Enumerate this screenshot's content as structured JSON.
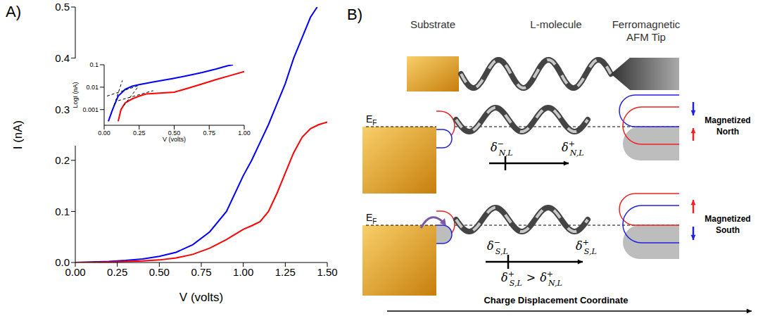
{
  "panel_labels": [
    "A)",
    "B)"
  ],
  "chart_data": [
    {
      "type": "line",
      "x_label": "V (volts)",
      "y_label": "I (nA)",
      "xlim": [
        0,
        1.5
      ],
      "xticks": [
        {
          "value": 0,
          "label": "0.00"
        },
        0.25,
        {
          "value": 0.5,
          "label": "0.50"
        },
        0.75,
        {
          "value": 1,
          "label": "1.00"
        },
        1.25,
        {
          "value": 1.5,
          "label": "1.50"
        }
      ],
      "ylim": [
        0,
        0.5
      ],
      "yticks": [
        {
          "value": 0,
          "label": "0.0"
        },
        0.1,
        0.2,
        0.3,
        0.4,
        0.5
      ],
      "series": [
        {
          "color": "#0000ff",
          "line_style": "solid",
          "x": [
            0,
            0.1,
            0.2,
            0.3,
            0.4,
            0.5,
            0.6,
            0.7,
            0.8,
            0.9,
            1.0,
            1.05,
            1.1,
            1.15,
            1.2,
            1.25,
            1.3,
            1.35,
            1.4,
            1.44
          ],
          "values": [
            0,
            0.001,
            0.002,
            0.004,
            0.007,
            0.012,
            0.02,
            0.035,
            0.06,
            0.1,
            0.17,
            0.2,
            0.235,
            0.27,
            0.31,
            0.35,
            0.4,
            0.44,
            0.48,
            0.5
          ]
        },
        {
          "color": "#ff0000",
          "line_style": "solid",
          "x": [
            0,
            0.1,
            0.2,
            0.3,
            0.4,
            0.5,
            0.6,
            0.7,
            0.8,
            0.9,
            1.0,
            1.05,
            1.1,
            1.15,
            1.2,
            1.25,
            1.3,
            1.35,
            1.4,
            1.45,
            1.5
          ],
          "values": [
            0,
            0.0005,
            0.001,
            0.002,
            0.003,
            0.005,
            0.009,
            0.016,
            0.028,
            0.045,
            0.065,
            0.072,
            0.08,
            0.1,
            0.135,
            0.175,
            0.215,
            0.245,
            0.262,
            0.27,
            0.275
          ]
        }
      ]
    },
    {
      "type": "line",
      "log": "y",
      "x_label": "V (volts)",
      "y_label": "LogI (nA)",
      "xlim": [
        0,
        1.0
      ],
      "xticks": [
        {
          "value": 0,
          "label": "0.00"
        },
        0.25,
        {
          "value": 0.5,
          "label": "0.50"
        },
        0.75,
        {
          "value": 1,
          "label": "1.00"
        }
      ],
      "ylim": [
        0.0002,
        0.1
      ],
      "yticks": [
        0.001,
        0.01,
        0.1
      ],
      "series": [
        {
          "color": "#0000ff",
          "line_style": "solid",
          "x": [
            0.03,
            0.06,
            0.1,
            0.15,
            0.2,
            0.25,
            0.35,
            0.5,
            0.6,
            0.7,
            0.8,
            0.88,
            0.92
          ],
          "values": [
            0.0003,
            0.001,
            0.004,
            0.008,
            0.011,
            0.013,
            0.017,
            0.025,
            0.033,
            0.045,
            0.065,
            0.09,
            0.1
          ]
        },
        {
          "color": "#ff0000",
          "line_style": "solid",
          "x": [
            0.1,
            0.12,
            0.15,
            0.2,
            0.25,
            0.3,
            0.4,
            0.5,
            0.6,
            0.7,
            0.8,
            0.9,
            1.0
          ],
          "values": [
            0.0003,
            0.001,
            0.002,
            0.003,
            0.004,
            0.005,
            0.0055,
            0.006,
            0.009,
            0.014,
            0.022,
            0.033,
            0.05
          ]
        },
        {
          "color": "#000000",
          "line_style": "dashed",
          "x": [
            0.07,
            0.13
          ],
          "values": [
            0.0015,
            0.02
          ]
        },
        {
          "color": "#000000",
          "line_style": "dashed",
          "x": [
            0.02,
            0.25
          ],
          "values": [
            0.004,
            0.012
          ]
        },
        {
          "color": "#000000",
          "line_style": "dashed",
          "x": [
            0.14,
            0.24
          ],
          "values": [
            0.0015,
            0.01
          ]
        },
        {
          "color": "#000000",
          "line_style": "dashed",
          "x": [
            0.1,
            0.35
          ],
          "values": [
            0.0025,
            0.007
          ]
        }
      ]
    }
  ],
  "diagram": {
    "headers": [
      [
        "Substrate"
      ],
      [
        "L-molecule"
      ],
      [
        "Ferromagnetic",
        "AFM Tip"
      ]
    ],
    "fermi_level": {
      "main": "E",
      "sub": "F"
    },
    "delta_symbol": "δ",
    "rows": [
      {
        "label": [
          "Magnetized",
          "North"
        ],
        "delta_minus": {
          "sup": "−",
          "sub": "N,L"
        },
        "delta_plus": {
          "sup": "+",
          "sub": "N,L"
        }
      },
      {
        "label": [
          "Magnetized",
          "South"
        ],
        "delta_minus": {
          "sup": "−",
          "sub": "S,L"
        },
        "delta_plus": {
          "sup": "+",
          "sub": "S,L"
        }
      }
    ],
    "inequality": {
      "left": {
        "sup": "+",
        "sub": "S,L"
      },
      "op": ">",
      "right": {
        "sup": "+",
        "sub": "N,L"
      }
    },
    "axis_label": "Charge Displacement Coordinate"
  }
}
